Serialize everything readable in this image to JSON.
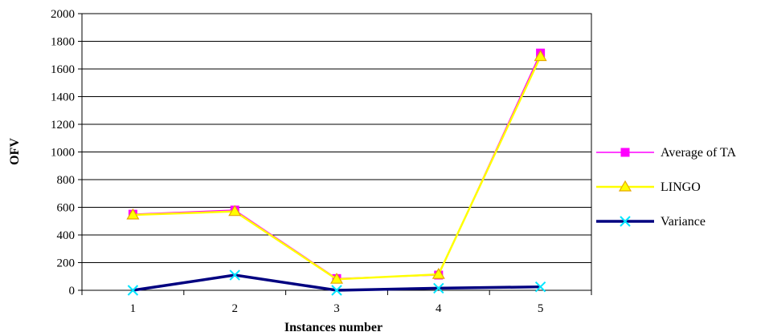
{
  "chart_data": {
    "type": "line",
    "title": "",
    "xlabel": "Instances number",
    "ylabel": "OFV",
    "categories": [
      "1",
      "2",
      "3",
      "4",
      "5"
    ],
    "ylim": [
      0,
      2000
    ],
    "yticks": [
      0,
      200,
      400,
      600,
      800,
      1000,
      1200,
      1400,
      1600,
      1800,
      2000
    ],
    "grid": "horizontal",
    "legend_position": "right",
    "series": [
      {
        "name": "Average of TA",
        "values": [
          550,
          580,
          85,
          110,
          1715
        ],
        "color": "#ff00ff",
        "marker": "square"
      },
      {
        "name": "LINGO",
        "values": [
          545,
          570,
          80,
          115,
          1690
        ],
        "color": "#ffff00",
        "marker": "triangle"
      },
      {
        "name": "Variance",
        "values": [
          0,
          110,
          0,
          15,
          25
        ],
        "color": "#000080",
        "marker": "x",
        "marker_color": "#00e5ff"
      }
    ]
  }
}
